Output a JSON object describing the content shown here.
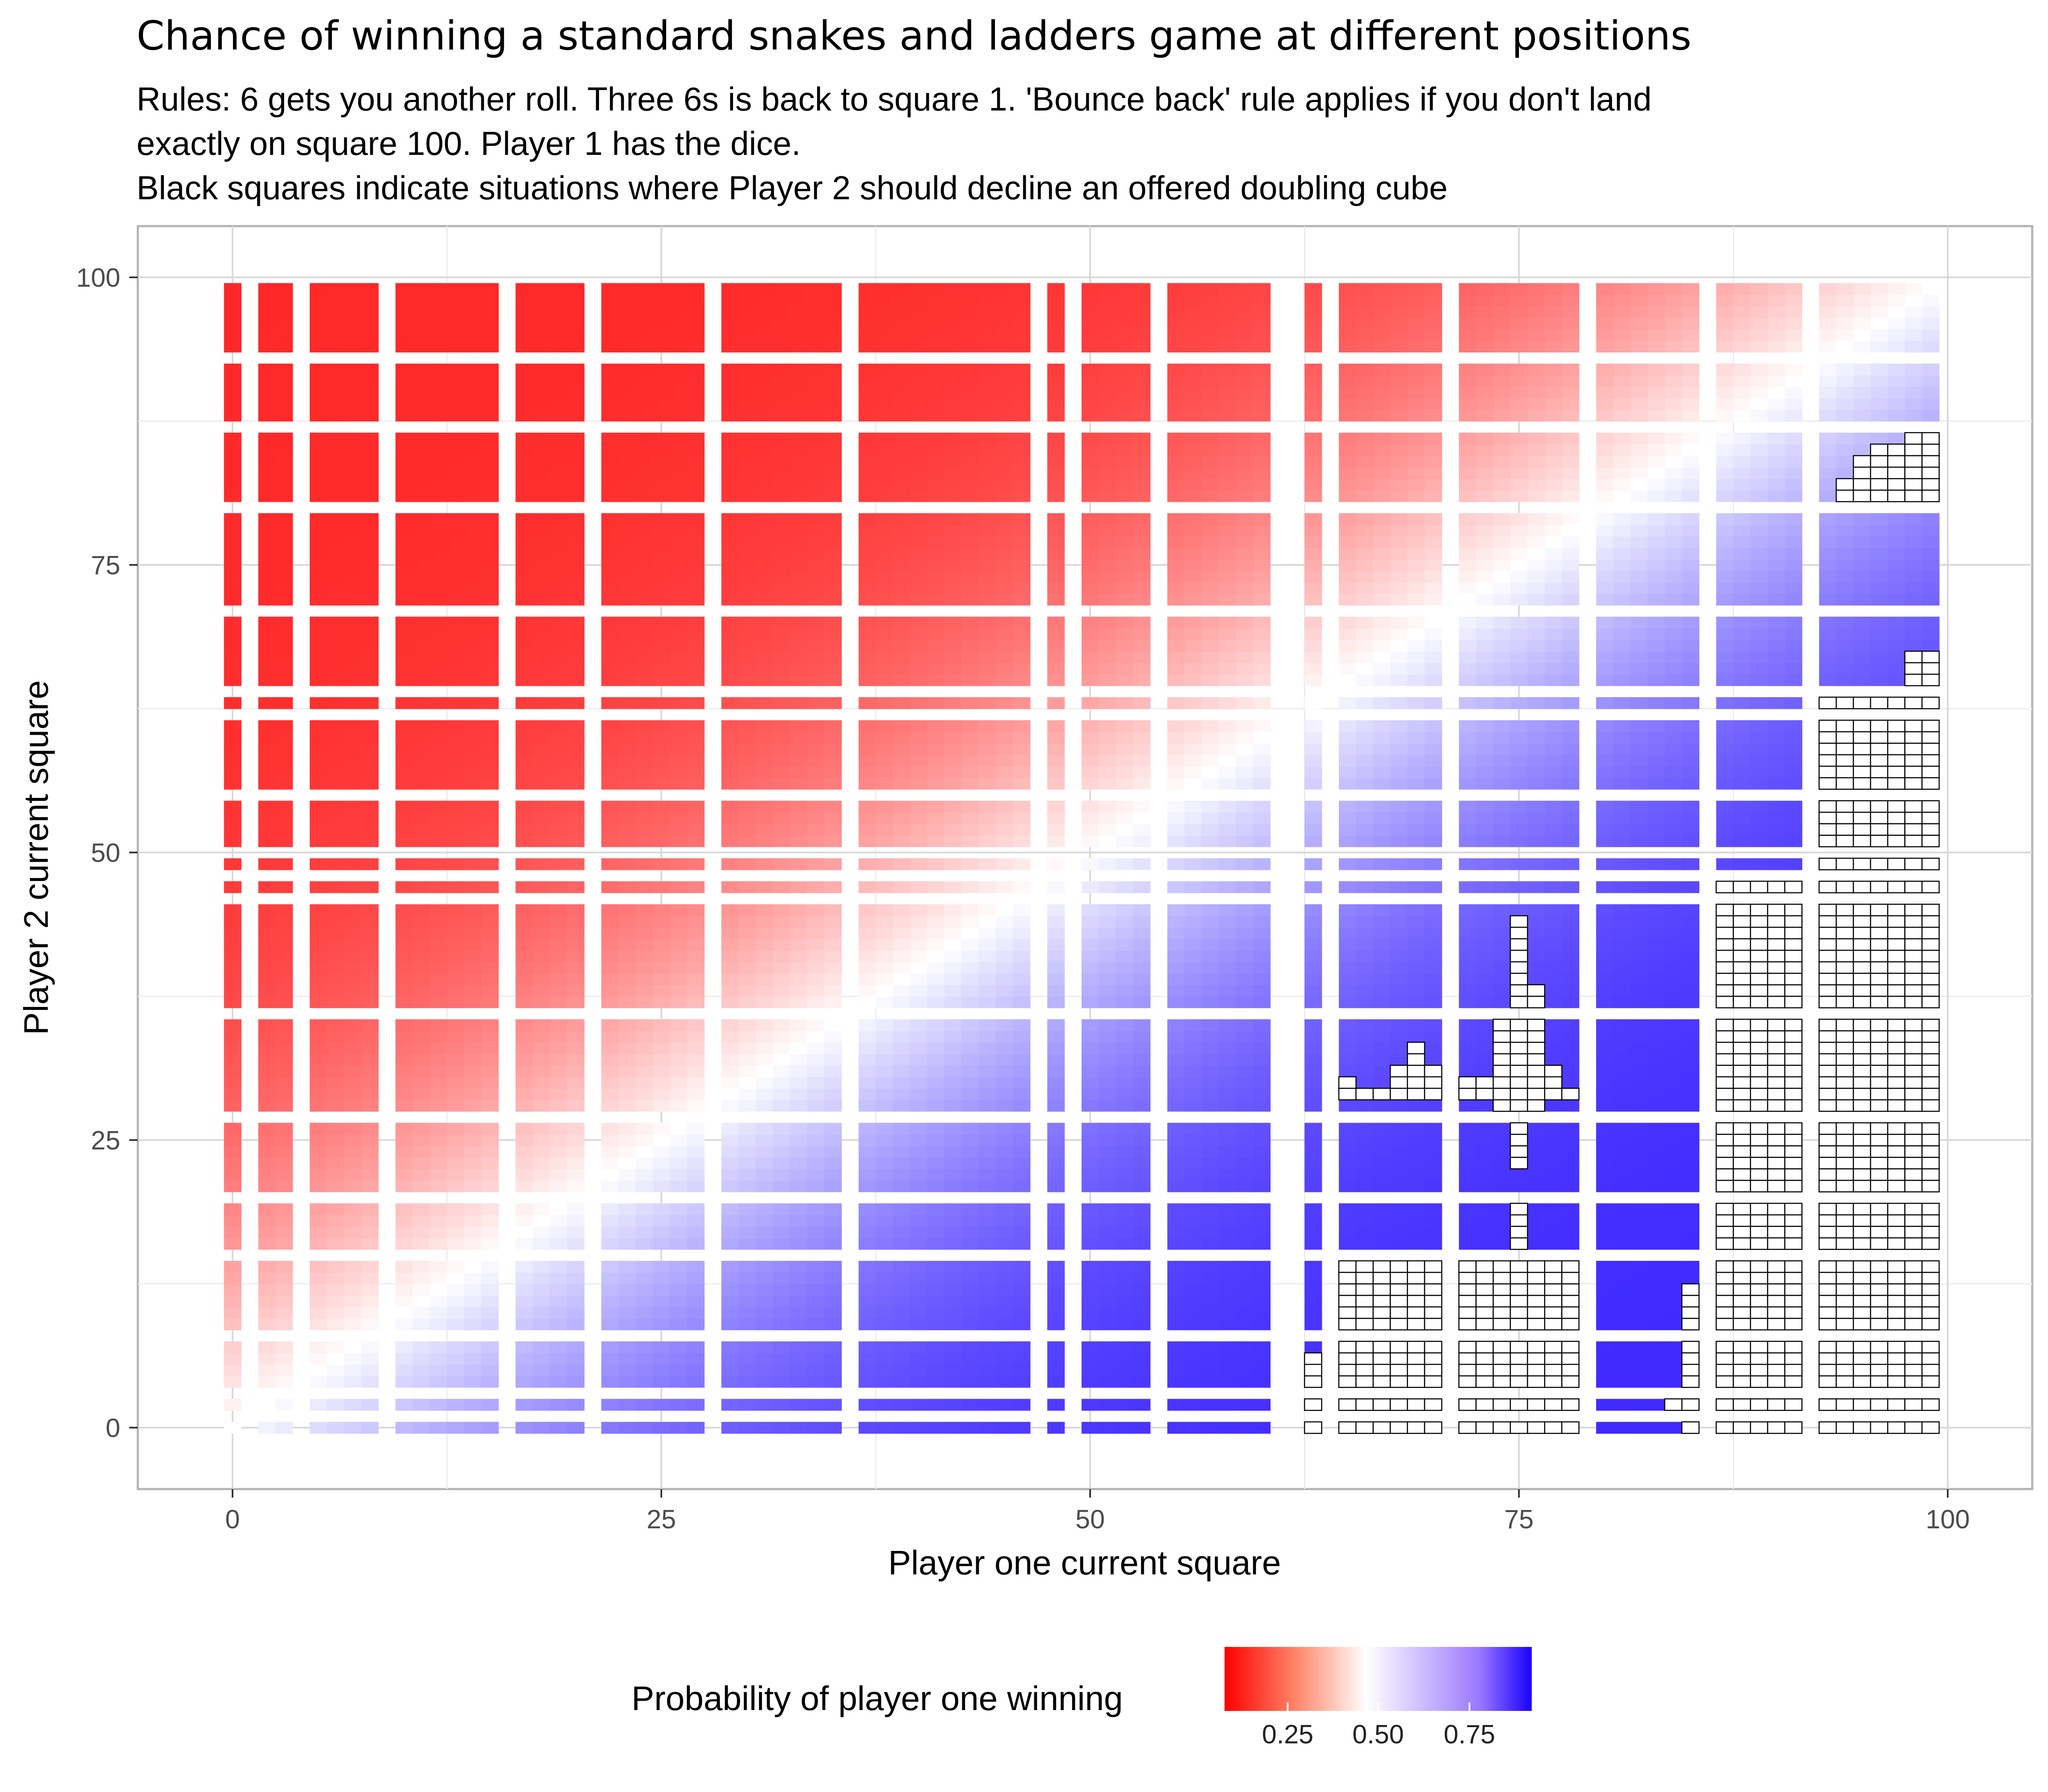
{
  "header": {
    "title": "Chance of winning a standard snakes and ladders game at different positions",
    "subtitle_lines": [
      "Rules: 6 gets you another roll. Three 6s is back to square 1. 'Bounce back' rule applies if you don't land",
      "exactly on square 100. Player 1 has the dice.",
      "Black squares indicate situations where Player 2 should decline an offered doubling cube"
    ]
  },
  "legend": {
    "title": "Probability of player one winning",
    "ticks": [
      "0.25",
      "0.50",
      "0.75"
    ],
    "tick_values": [
      0.25,
      0.5,
      0.75
    ],
    "colors": {
      "low": "#ff0000",
      "mid": "#ffffff",
      "high": "#1a00ff"
    },
    "position": "bottom"
  },
  "chart_data": {
    "type": "heatmap",
    "title": "Chance of winning a standard snakes and ladders game at different positions",
    "xlabel": "Player one current square",
    "ylabel": "Player 2 current square",
    "xlim": [
      -5,
      105
    ],
    "ylim": [
      -5,
      105
    ],
    "x_ticks": [
      0,
      25,
      50,
      75,
      100
    ],
    "y_ticks": [
      0,
      25,
      50,
      75,
      100
    ],
    "x_tick_labels": [
      "0",
      "25",
      "50",
      "75",
      "100"
    ],
    "y_tick_labels": [
      "0",
      "25",
      "50",
      "75",
      "100"
    ],
    "grid": true,
    "fill_scale": {
      "min": 0.05,
      "mid": 0.5,
      "max": 0.95
    },
    "x_blocks": [
      [
        0,
        0
      ],
      [
        2,
        3
      ],
      [
        5,
        8
      ],
      [
        10,
        15
      ],
      [
        17,
        20
      ],
      [
        22,
        27
      ],
      [
        29,
        35
      ],
      [
        37,
        44
      ],
      [
        45,
        46
      ],
      [
        48,
        48
      ],
      [
        50,
        53
      ],
      [
        55,
        60
      ],
      [
        63,
        63
      ],
      [
        65,
        70
      ],
      [
        72,
        78
      ],
      [
        80,
        85
      ],
      [
        87,
        91
      ],
      [
        93,
        99
      ]
    ],
    "y_blocks": [
      [
        0,
        0
      ],
      [
        2,
        2
      ],
      [
        4,
        7
      ],
      [
        9,
        14
      ],
      [
        16,
        19
      ],
      [
        21,
        26
      ],
      [
        28,
        35
      ],
      [
        37,
        45
      ],
      [
        47,
        47
      ],
      [
        49,
        49
      ],
      [
        51,
        54
      ],
      [
        56,
        61
      ],
      [
        63,
        63
      ],
      [
        65,
        70
      ],
      [
        72,
        79
      ],
      [
        81,
        86
      ],
      [
        88,
        92
      ],
      [
        94,
        99
      ]
    ],
    "p_win_model": "value(x, y) = 0.5 + 0.38 * tanh((x - y) / 30)",
    "decline_double_squares": [
      {
        "x": [
          63,
          63
        ],
        "y": [
          0,
          6
        ]
      },
      {
        "x": [
          65,
          70
        ],
        "y": [
          0,
          14
        ]
      },
      {
        "x": [
          65,
          65
        ],
        "y": [
          29,
          30
        ]
      },
      {
        "x": [
          66,
          67
        ],
        "y": [
          29,
          29
        ]
      },
      {
        "x": [
          68,
          68
        ],
        "y": [
          29,
          31
        ]
      },
      {
        "x": [
          69,
          69
        ],
        "y": [
          29,
          33
        ]
      },
      {
        "x": [
          70,
          70
        ],
        "y": [
          29,
          31
        ]
      },
      {
        "x": [
          72,
          78
        ],
        "y": [
          0,
          12
        ]
      },
      {
        "x": [
          72,
          78
        ],
        "y": [
          13,
          14
        ]
      },
      {
        "x": [
          73,
          75
        ],
        "y": [
          14,
          15
        ]
      },
      {
        "x": [
          75,
          75
        ],
        "y": [
          16,
          19
        ]
      },
      {
        "x": [
          75,
          75
        ],
        "y": [
          23,
          26
        ]
      },
      {
        "x": [
          74,
          76
        ],
        "y": [
          28,
          35
        ]
      },
      {
        "x": [
          72,
          73
        ],
        "y": [
          29,
          30
        ]
      },
      {
        "x": [
          77,
          77
        ],
        "y": [
          29,
          31
        ]
      },
      {
        "x": [
          78,
          78
        ],
        "y": [
          29,
          29
        ]
      },
      {
        "x": [
          75,
          75
        ],
        "y": [
          37,
          44
        ]
      },
      {
        "x": [
          76,
          76
        ],
        "y": [
          37,
          38
        ]
      },
      {
        "x": [
          85,
          85
        ],
        "y": [
          0,
          12
        ]
      },
      {
        "x": [
          84,
          84
        ],
        "y": [
          2,
          2
        ]
      },
      {
        "x": [
          86,
          86
        ],
        "y": [
          9,
          12
        ]
      },
      {
        "x": [
          87,
          91
        ],
        "y": [
          0,
          45
        ]
      },
      {
        "x": [
          90,
          91
        ],
        "y": [
          45,
          46
        ]
      },
      {
        "x": [
          87,
          91
        ],
        "y": [
          47,
          47
        ]
      },
      {
        "x": [
          93,
          99
        ],
        "y": [
          0,
          63
        ]
      },
      {
        "x": [
          98,
          99
        ],
        "y": [
          65,
          67
        ]
      },
      {
        "x": [
          94,
          94
        ],
        "y": [
          81,
          82
        ]
      },
      {
        "x": [
          95,
          95
        ],
        "y": [
          81,
          84
        ]
      },
      {
        "x": [
          96,
          97
        ],
        "y": [
          81,
          85
        ]
      },
      {
        "x": [
          98,
          99
        ],
        "y": [
          81,
          86
        ]
      }
    ]
  }
}
